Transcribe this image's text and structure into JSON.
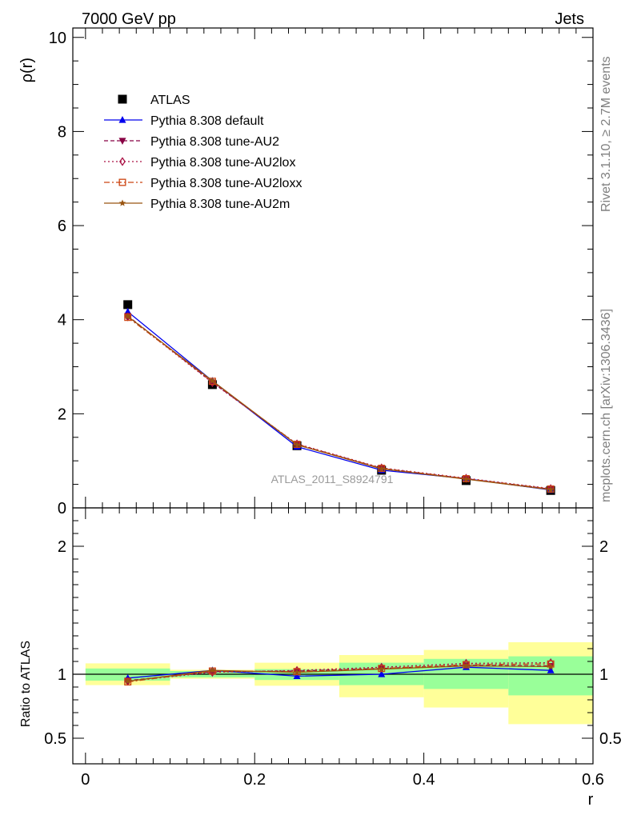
{
  "header": {
    "left": "7000 GeV pp",
    "right": "Jets"
  },
  "side_labels": {
    "top": "Rivet 3.1.10, ≥ 2.7M events",
    "bottom": "mcplots.cern.ch [arXiv:1306.3436]"
  },
  "watermark": "ATLAS_2011_S8924791",
  "chart_data": [
    {
      "type": "line",
      "panel": "main",
      "ylabel": "ρ(r)",
      "xlabel": "",
      "xlim": [
        -0.015,
        0.6
      ],
      "ylim": [
        0,
        10.2
      ],
      "yticks": [
        0,
        2,
        4,
        6,
        8,
        10
      ],
      "x": [
        0.05,
        0.15,
        0.25,
        0.35,
        0.45,
        0.55
      ],
      "series": [
        {
          "name": "ATLAS",
          "values": [
            4.32,
            2.62,
            1.32,
            0.8,
            0.58,
            0.37
          ],
          "color": "#000000",
          "marker": "square-filled"
        },
        {
          "name": "Pythia 8.308 default",
          "values": [
            4.17,
            2.7,
            1.3,
            0.8,
            0.62,
            0.38
          ],
          "color": "#0000ee",
          "marker": "triangle-filled"
        },
        {
          "name": "Pythia 8.308 tune-AU2",
          "values": [
            4.08,
            2.67,
            1.35,
            0.84,
            0.62,
            0.4
          ],
          "color": "#880044",
          "marker": "triangle-down-filled"
        },
        {
          "name": "Pythia 8.308 tune-AU2lox",
          "values": [
            4.06,
            2.66,
            1.36,
            0.85,
            0.63,
            0.41
          ],
          "color": "#aa1144",
          "marker": "diamond-open"
        },
        {
          "name": "Pythia 8.308 tune-AU2loxx",
          "values": [
            4.05,
            2.69,
            1.35,
            0.84,
            0.62,
            0.4
          ],
          "color": "#cc4411",
          "marker": "square-open"
        },
        {
          "name": "Pythia 8.308 tune-AU2m",
          "values": [
            4.07,
            2.7,
            1.34,
            0.83,
            0.61,
            0.39
          ],
          "color": "#995511",
          "marker": "star"
        }
      ]
    },
    {
      "type": "line",
      "panel": "ratio",
      "ylabel": "Ratio to ATLAS",
      "xlabel": "r",
      "xlim": [
        -0.015,
        0.6
      ],
      "ylim": [
        0.3,
        2.3
      ],
      "yticks": [
        0.5,
        1,
        2
      ],
      "ytick_labels": [
        "0.5",
        "1",
        "2"
      ],
      "xticks": [
        0,
        0.2,
        0.4,
        0.6
      ],
      "xtick_labels": [
        "0",
        "0.2",
        "0.4",
        "0.6"
      ],
      "x": [
        0.05,
        0.15,
        0.25,
        0.35,
        0.45,
        0.55
      ],
      "bins": [
        [
          0,
          0.1
        ],
        [
          0.1,
          0.2
        ],
        [
          0.2,
          0.3
        ],
        [
          0.3,
          0.4
        ],
        [
          0.4,
          0.5
        ],
        [
          0.5,
          0.6
        ]
      ],
      "band_yellow": [
        [
          0.915,
          1.085
        ],
        [
          0.965,
          1.035
        ],
        [
          0.91,
          1.09
        ],
        [
          0.82,
          1.15
        ],
        [
          0.74,
          1.19
        ],
        [
          0.61,
          1.25
        ]
      ],
      "band_green": [
        [
          0.95,
          1.045
        ],
        [
          0.975,
          1.025
        ],
        [
          0.955,
          1.04
        ],
        [
          0.915,
          1.09
        ],
        [
          0.885,
          1.12
        ],
        [
          0.835,
          1.14
        ]
      ],
      "reference": 1,
      "series": [
        {
          "name": "Pythia 8.308 default",
          "values": [
            0.97,
            1.03,
            0.985,
            1.0,
            1.055,
            1.03
          ],
          "color": "#0000ee",
          "marker": "triangle-filled"
        },
        {
          "name": "Pythia 8.308 tune-AU2",
          "values": [
            0.95,
            1.02,
            1.025,
            1.045,
            1.07,
            1.065
          ],
          "color": "#880044",
          "marker": "triangle-down-filled"
        },
        {
          "name": "Pythia 8.308 tune-AU2lox",
          "values": [
            0.945,
            1.015,
            1.03,
            1.055,
            1.085,
            1.09
          ],
          "color": "#aa1144",
          "marker": "diamond-open"
        },
        {
          "name": "Pythia 8.308 tune-AU2loxx",
          "values": [
            0.94,
            1.025,
            1.02,
            1.045,
            1.075,
            1.08
          ],
          "color": "#cc4411",
          "marker": "square-open"
        },
        {
          "name": "Pythia 8.308 tune-AU2m",
          "values": [
            0.945,
            1.03,
            1.015,
            1.04,
            1.065,
            1.06
          ],
          "color": "#995511",
          "marker": "star"
        }
      ]
    }
  ]
}
